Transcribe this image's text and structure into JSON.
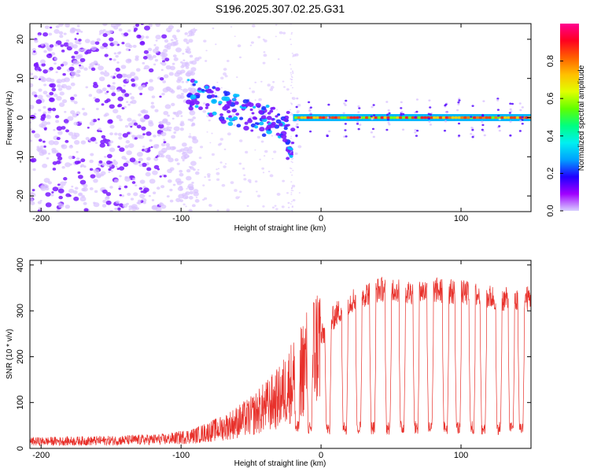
{
  "title": "S196.2025.307.02.25.G31",
  "colors": {
    "snr_line": "#e8302a",
    "dot_weak": "#d9c2ff",
    "dot_strong": "#7a19ff",
    "band": "#00b8ff"
  },
  "chart_data": [
    {
      "type": "heatmap",
      "name": "spectrogram",
      "xlabel": "Height of straight line (km)",
      "ylabel": "Frequency (Hz)",
      "xlim": [
        -208,
        150
      ],
      "ylim": [
        -24,
        24
      ],
      "xticks": [
        -200,
        -100,
        0,
        100
      ],
      "yticks": [
        -20,
        -10,
        0,
        10,
        20
      ],
      "colorbar": {
        "label": "Normalized spectral amplitude",
        "range": [
          0,
          1
        ],
        "ticks": [
          0.0,
          0.2,
          0.4,
          0.6,
          0.8
        ],
        "tick_labels": [
          "0.0",
          "0.2",
          "0.4",
          "0.6",
          "0.8"
        ],
        "stops": [
          "#d8d0ff",
          "#a000ff",
          "#2000ff",
          "#00a0ff",
          "#00f0f0",
          "#00ff80",
          "#60ff00",
          "#e0ff00",
          "#ffc000",
          "#ff6000",
          "#ff0020",
          "#ff0090"
        ]
      },
      "features": [
        {
          "description": "central line",
          "x_start": -20,
          "x_end": 150,
          "freq": 0
        },
        {
          "description": "scattered noise",
          "x_start": -208,
          "x_end": -95
        }
      ]
    },
    {
      "type": "line",
      "name": "snr",
      "xlabel": "Height of straight line (km)",
      "ylabel": "SNR (10 * v/v)",
      "xlim": [
        -208,
        150
      ],
      "ylim": [
        0,
        410
      ],
      "xticks": [
        -200,
        -100,
        0,
        100
      ],
      "yticks": [
        0,
        100,
        200,
        300,
        400
      ],
      "series": [
        {
          "name": "SNR",
          "envelope": {
            "x": [
              -208,
              -150,
              -110,
              -90,
              -70,
              -50,
              -30,
              -20,
              -10,
              0,
              10,
              20,
              30,
              40,
              50,
              60,
              80,
              100,
              120,
              140,
              150
            ],
            "base": [
              15,
              17,
              20,
              28,
              45,
              70,
              110,
              150,
              190,
              240,
              290,
              320,
              335,
              345,
              350,
              340,
              345,
              340,
              330,
              320,
              330
            ]
          },
          "dips_x": [
            -17,
            -8,
            5,
            17,
            27,
            37,
            48,
            58,
            68,
            78,
            89,
            98,
            108,
            116,
            127,
            136,
            143
          ],
          "dip_level": 30
        }
      ]
    }
  ]
}
